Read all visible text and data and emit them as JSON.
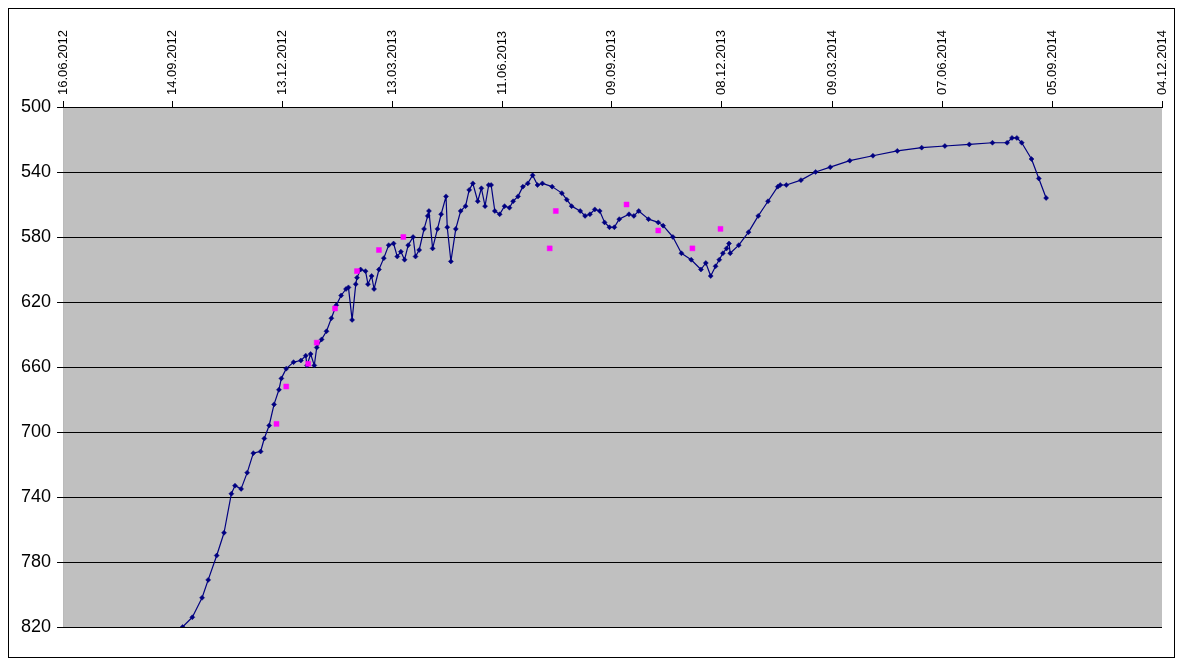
{
  "chart_data": {
    "type": "line",
    "grid": "y",
    "legend": false,
    "line_style": "solid",
    "xlim": [
      "2012-06-16",
      "2014-12-04"
    ],
    "xticks": [
      {
        "value": "2012-06-16",
        "label": "16.06.2012"
      },
      {
        "value": "2012-09-14",
        "label": "14.09.2012"
      },
      {
        "value": "2012-12-13",
        "label": "13.12.2012"
      },
      {
        "value": "2013-03-13",
        "label": "13.03.2013"
      },
      {
        "value": "2013-06-11",
        "label": "11.06.2013"
      },
      {
        "value": "2013-09-09",
        "label": "09.09.2013"
      },
      {
        "value": "2013-12-08",
        "label": "08.12.2013"
      },
      {
        "value": "2014-03-09",
        "label": "09.03.2014"
      },
      {
        "value": "2014-06-07",
        "label": "07.06.2014"
      },
      {
        "value": "2014-09-05",
        "label": "05.09.2014"
      },
      {
        "value": "2014-12-04",
        "label": "04.12.2014"
      }
    ],
    "ylim": [
      820,
      500
    ],
    "yticks": [
      500,
      540,
      580,
      620,
      660,
      700,
      740,
      780,
      820
    ],
    "series": [
      {
        "color": "#000080",
        "marker": "diamond",
        "x": [
          "2012-09-22",
          "2012-09-30",
          "2012-10-08",
          "2012-10-13",
          "2012-10-20",
          "2012-10-26",
          "2012-11-01",
          "2012-11-04",
          "2012-11-09",
          "2012-11-14",
          "2012-11-19",
          "2012-11-25",
          "2012-11-28",
          "2012-12-02",
          "2012-12-06",
          "2012-12-10",
          "2012-12-12",
          "2012-12-16",
          "2012-12-22",
          "2012-12-28",
          "2013-01-01",
          "2013-01-02",
          "2013-01-05",
          "2013-01-08",
          "2013-01-10",
          "2013-01-14",
          "2013-01-18",
          "2013-01-22",
          "2013-01-26",
          "2013-01-30",
          "2013-02-03",
          "2013-02-05",
          "2013-02-08",
          "2013-02-11",
          "2013-02-12",
          "2013-02-15",
          "2013-02-19",
          "2013-02-21",
          "2013-02-24",
          "2013-02-26",
          "2013-03-02",
          "2013-03-06",
          "2013-03-10",
          "2013-03-14",
          "2013-03-17",
          "2013-03-20",
          "2013-03-23",
          "2013-03-26",
          "2013-03-30",
          "2013-04-01",
          "2013-04-04",
          "2013-04-08",
          "2013-04-11",
          "2013-04-12",
          "2013-04-15",
          "2013-04-19",
          "2013-04-22",
          "2013-04-26",
          "2013-04-27",
          "2013-04-30",
          "2013-05-04",
          "2013-05-08",
          "2013-05-12",
          "2013-05-15",
          "2013-05-18",
          "2013-05-22",
          "2013-05-25",
          "2013-05-28",
          "2013-05-31",
          "2013-06-02",
          "2013-06-05",
          "2013-06-09",
          "2013-06-13",
          "2013-06-17",
          "2013-06-20",
          "2013-06-24",
          "2013-06-28",
          "2013-07-02",
          "2013-07-06",
          "2013-07-10",
          "2013-07-14",
          "2013-07-22",
          "2013-07-30",
          "2013-08-03",
          "2013-08-07",
          "2013-08-14",
          "2013-08-18",
          "2013-08-22",
          "2013-08-26",
          "2013-08-30",
          "2013-09-03",
          "2013-09-07",
          "2013-09-11",
          "2013-09-15",
          "2013-09-23",
          "2013-09-27",
          "2013-10-01",
          "2013-10-09",
          "2013-10-17",
          "2013-10-21",
          "2013-10-29",
          "2013-11-05",
          "2013-11-13",
          "2013-11-21",
          "2013-11-25",
          "2013-11-29",
          "2013-12-03",
          "2013-12-06",
          "2013-12-09",
          "2013-12-12",
          "2013-12-14",
          "2013-12-15",
          "2013-12-22",
          "2013-12-30",
          "2014-01-07",
          "2014-01-15",
          "2014-01-23",
          "2014-01-25",
          "2014-01-30",
          "2014-02-11",
          "2014-02-23",
          "2014-03-07",
          "2014-03-23",
          "2014-04-11",
          "2014-05-01",
          "2014-05-21",
          "2014-06-09",
          "2014-06-29",
          "2014-07-18",
          "2014-07-30",
          "2014-08-03",
          "2014-08-07",
          "2014-08-11",
          "2014-08-19",
          "2014-08-25",
          "2014-08-31"
        ],
        "values": [
          820,
          814,
          802,
          791,
          776,
          762,
          738,
          733,
          735,
          725,
          713,
          712,
          704,
          696,
          683,
          674,
          667,
          661,
          657,
          656,
          653,
          659,
          652,
          659,
          648,
          643,
          638,
          630,
          622,
          616,
          612,
          611,
          631,
          609,
          605,
          600,
          601,
          609,
          604,
          612,
          600,
          593,
          585,
          584,
          592,
          589,
          594,
          585,
          580,
          592,
          588,
          575,
          567,
          564,
          587,
          575,
          566,
          555,
          574,
          595,
          575,
          564,
          561,
          551,
          547,
          558,
          550,
          561,
          548,
          548,
          564,
          566,
          561,
          562,
          558,
          555,
          549,
          547,
          542,
          548,
          547,
          549,
          553,
          557,
          561,
          564,
          567,
          566,
          563,
          564,
          571,
          574,
          574,
          569,
          566,
          567,
          564,
          569,
          571,
          573,
          580,
          590,
          594,
          600,
          596,
          604,
          598,
          594,
          590,
          587,
          584,
          590,
          585,
          577,
          567,
          558,
          549,
          548,
          548,
          545,
          540,
          537,
          533,
          530,
          527,
          525,
          524,
          523,
          522,
          522,
          519,
          519,
          522,
          532,
          544,
          556
        ]
      },
      {
        "type": "scatter",
        "color": "#ff00ff",
        "marker": "square",
        "x": [
          "2012-12-08",
          "2012-12-16",
          "2013-01-03",
          "2013-01-10",
          "2013-01-25",
          "2013-02-12",
          "2013-03-02",
          "2013-03-22",
          "2013-07-20",
          "2013-07-25",
          "2013-09-21",
          "2013-10-17",
          "2013-11-14",
          "2013-12-07"
        ],
        "values": [
          695,
          672,
          658,
          645,
          624,
          601,
          588,
          580,
          587,
          564,
          560,
          576,
          587,
          575
        ]
      }
    ]
  }
}
